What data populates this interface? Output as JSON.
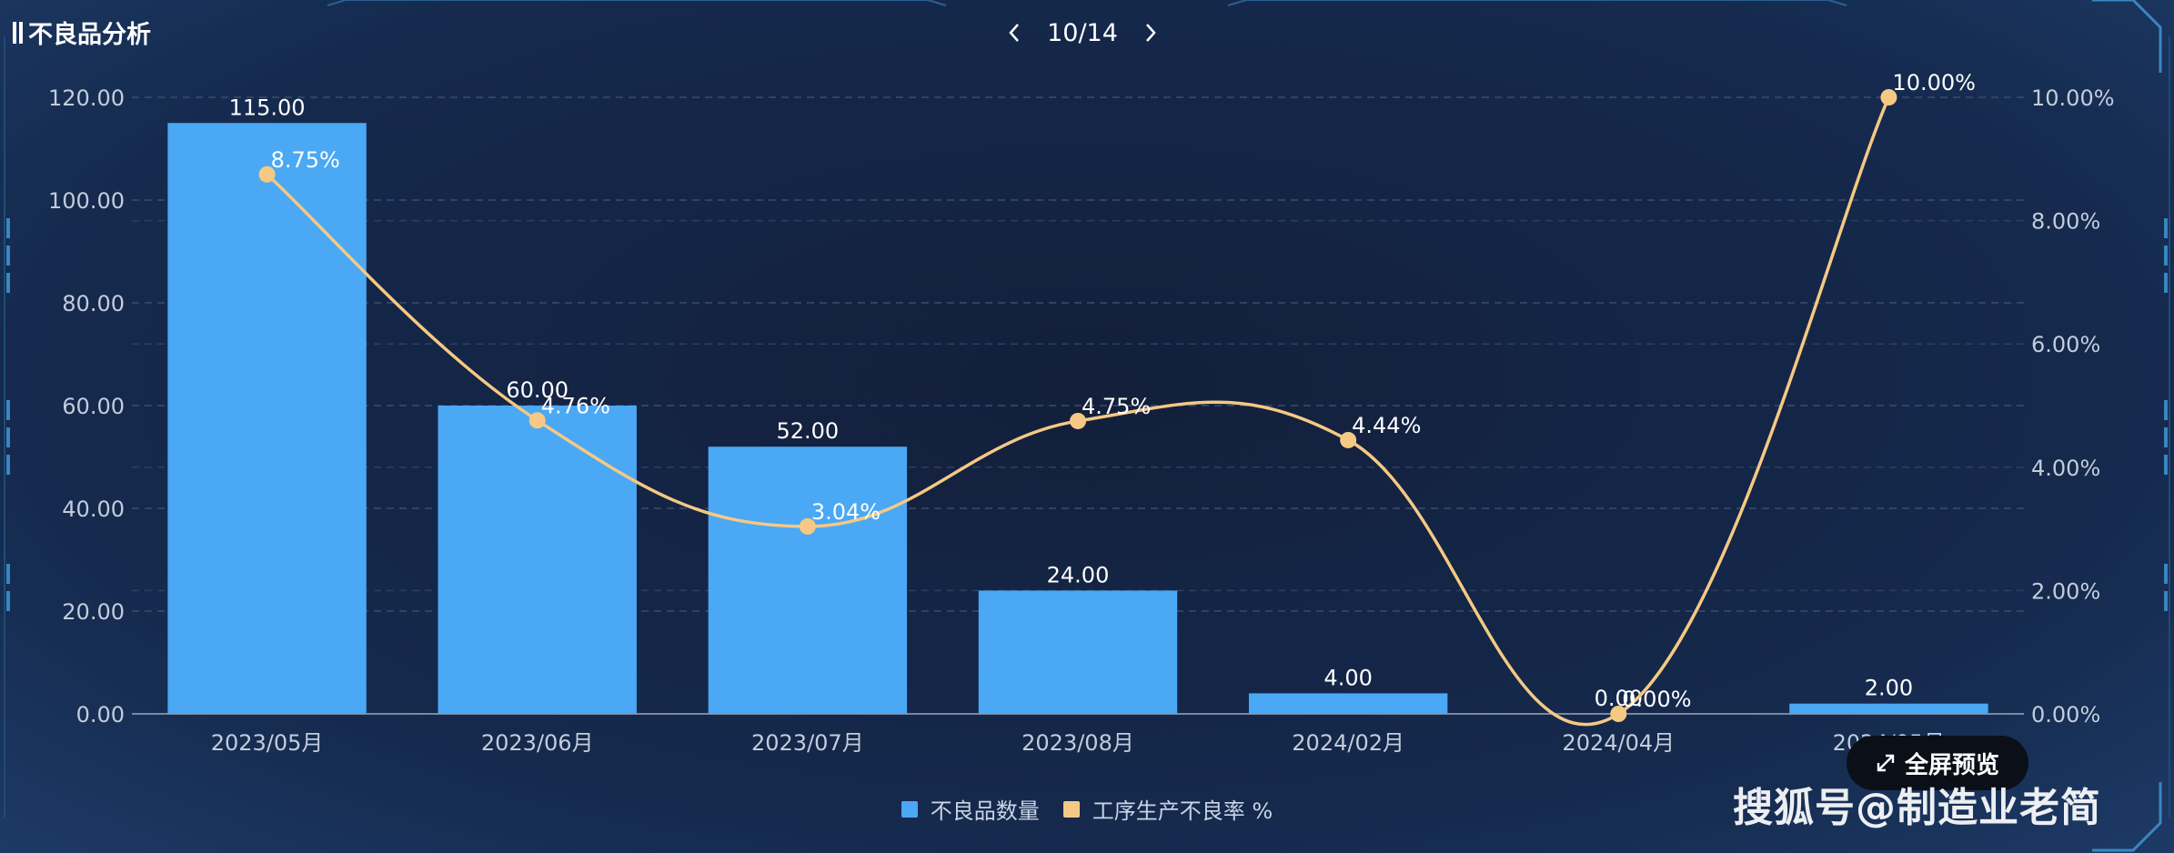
{
  "title": "不良品分析",
  "pager": {
    "text": "10/14"
  },
  "fullscreen_label": "全屏预览",
  "watermark": "搜狐号@制造业老简",
  "legend": [
    {
      "label": "不良品数量",
      "color": "#4aa8f5"
    },
    {
      "label": "工序生产不良率 %",
      "color": "#f5c983"
    }
  ],
  "chart_data": {
    "type": "bar",
    "categories": [
      "2023/05月",
      "2023/06月",
      "2023/07月",
      "2023/08月",
      "2024/02月",
      "2024/04月",
      "2024/05月"
    ],
    "series": [
      {
        "name": "不良品数量",
        "type": "bar",
        "axis": "left",
        "values": [
          115,
          60,
          52,
          24,
          4,
          0,
          2
        ],
        "labels": [
          "115.00",
          "60.00",
          "52.00",
          "24.00",
          "4.00",
          "0.00",
          "2.00"
        ],
        "color": "#4aa8f5"
      },
      {
        "name": "工序生产不良率 %",
        "type": "line",
        "smooth": true,
        "axis": "right",
        "values": [
          8.75,
          4.76,
          3.04,
          4.75,
          4.44,
          0,
          10
        ],
        "labels": [
          "8.75%",
          "4.76%",
          "3.04%",
          "4.75%",
          "4.44%",
          "0.00%",
          "10.00%"
        ],
        "color": "#f5c983"
      }
    ],
    "y_left": {
      "ylim": [
        0,
        120
      ],
      "ticks": [
        "0.00",
        "20.00",
        "40.00",
        "60.00",
        "80.00",
        "100.00",
        "120.00"
      ]
    },
    "y_right": {
      "ylim": [
        0,
        10
      ],
      "ticks": [
        "0.00%",
        "2.00%",
        "4.00%",
        "6.00%",
        "8.00%",
        "10.00%"
      ]
    },
    "grid": true,
    "legend_position": "bottom-center"
  }
}
